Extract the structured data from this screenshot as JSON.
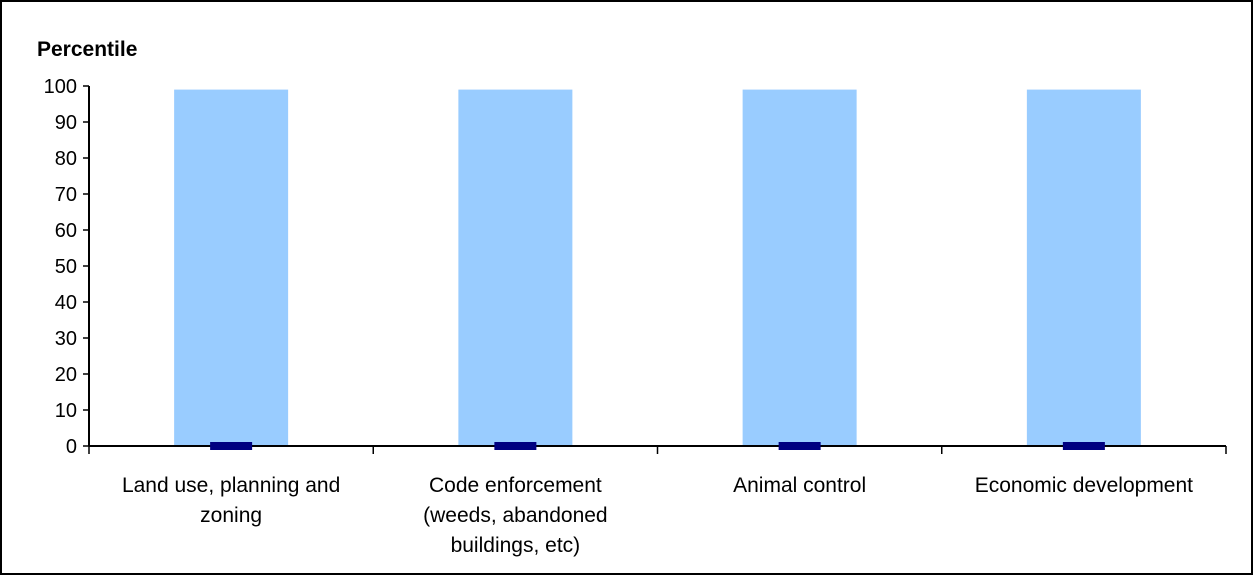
{
  "chart_data": {
    "type": "bar",
    "ylabel": "Percentile",
    "ylim": [
      0,
      100
    ],
    "yticks": [
      0,
      10,
      20,
      30,
      40,
      50,
      60,
      70,
      80,
      90,
      100
    ],
    "categories": [
      [
        "Land use, planning and",
        "zoning"
      ],
      [
        "Code enforcement",
        "(weeds, abandoned",
        "buildings, etc)"
      ],
      [
        "Animal control"
      ],
      [
        "Economic development"
      ]
    ],
    "series": [
      {
        "type": "range-bar",
        "values": [
          99,
          99,
          99,
          99
        ],
        "color": "#99ccff"
      },
      {
        "type": "marker",
        "values": [
          0,
          0,
          0,
          0
        ],
        "color": "#000080"
      }
    ],
    "grid": false,
    "legend": "none"
  }
}
